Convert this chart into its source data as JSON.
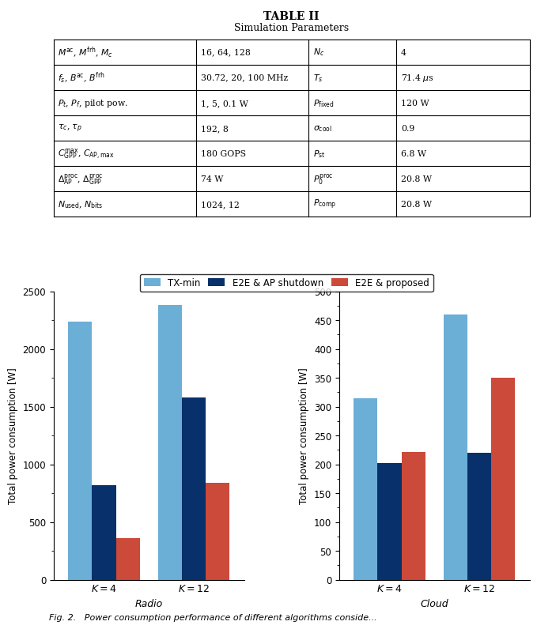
{
  "table_title": "TABLE II",
  "table_subtitle": "Simulation Parameters",
  "table_rows_left": [
    [
      "$M^{\\mathrm{ac}}$, $M^{\\mathrm{frh}}$, $M_c$",
      "16, 64, 128"
    ],
    [
      "$f_s$, $B^{\\mathrm{ac}}$, $B^{\\mathrm{frh}}$",
      "30.72, 20, 100 MHz"
    ],
    [
      "$P_t$, $P_f$, pilot pow.",
      "1, 5, 0.1 W"
    ],
    [
      "$\\tau_c$, $\\tau_p$",
      "192, 8"
    ],
    [
      "$C^{\\mathrm{max}}_{\\mathrm{GPP}}$, $C_{\\mathrm{AP,max}}$",
      "180 GOPS"
    ],
    [
      "$\\Delta^{\\mathrm{proc}}_{\\mathrm{AP}}$, $\\Delta^{\\mathrm{proc}}_{\\mathrm{GPP}}$",
      "74 W"
    ],
    [
      "$N_{\\mathrm{used}}$, $N_{\\mathrm{bits}}$",
      "1024, 12"
    ]
  ],
  "table_rows_right": [
    [
      "$N_c$",
      "4"
    ],
    [
      "$T_s$",
      "71.4 $\\mu$s"
    ],
    [
      "$P_{\\mathrm{fixed}}$",
      "120 W"
    ],
    [
      "$\\sigma_{\\mathrm{cool}}$",
      "0.9"
    ],
    [
      "$P_{\\mathrm{st}}$",
      "6.8 W"
    ],
    [
      "$P^{\\mathrm{proc}}_0$",
      "20.8 W"
    ],
    [
      "$P_{\\mathrm{comp}}$",
      "20.8 W"
    ]
  ],
  "legend_labels": [
    "TX-min",
    "E2E & AP shutdown",
    "E2E & proposed"
  ],
  "colors": [
    "#6baed6",
    "#08306b",
    "#cb4a3a"
  ],
  "radio_k4": [
    2240,
    820,
    360
  ],
  "radio_k12": [
    2380,
    1580,
    840
  ],
  "cloud_k4": [
    315,
    202,
    222
  ],
  "cloud_k12": [
    460,
    220,
    350
  ],
  "radio_ylim": [
    0,
    2500
  ],
  "cloud_ylim": [
    0,
    500
  ],
  "radio_yticks": [
    0,
    500,
    1000,
    1500,
    2000,
    2500
  ],
  "cloud_yticks": [
    0,
    50,
    100,
    150,
    200,
    250,
    300,
    350,
    400,
    450,
    500
  ],
  "xlabel_radio": "Radio",
  "xlabel_cloud": "Cloud",
  "ylabel": "Total power consumption [W]",
  "caption": "Fig. 2.   Power consumption performance of different algorithms conside..."
}
